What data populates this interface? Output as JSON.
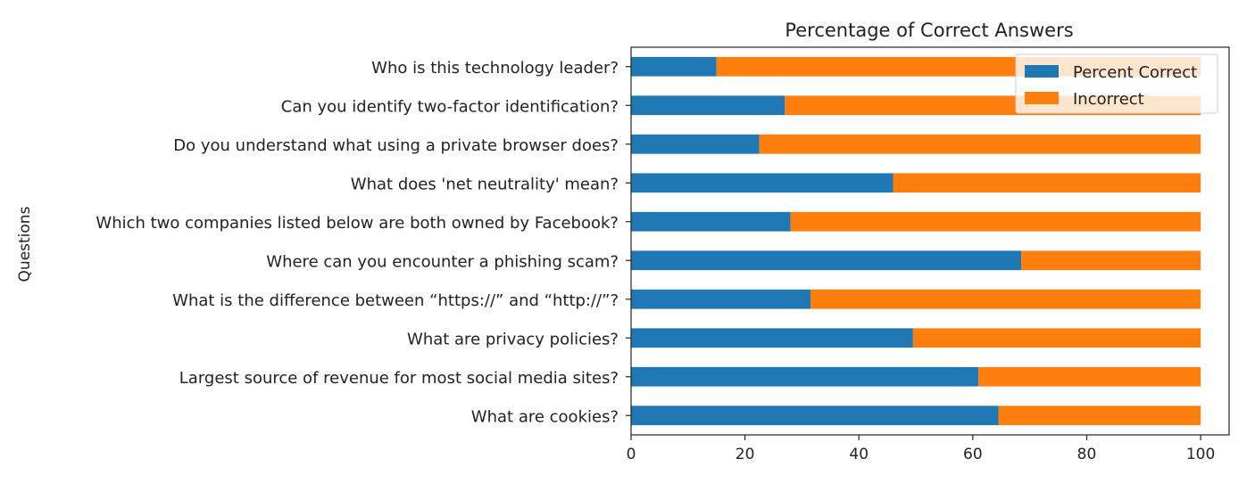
{
  "chart_data": {
    "type": "bar",
    "orientation": "horizontal",
    "stacked": true,
    "title": "Percentage of Correct Answers",
    "xlabel": "",
    "ylabel": "Questions",
    "xlim": [
      0,
      105
    ],
    "xticks": [
      0,
      20,
      40,
      60,
      80,
      100
    ],
    "grid": false,
    "legend_position": "top-right",
    "categories": [
      "Who is this technology leader?",
      "Can you identify two-factor identification?",
      "Do you understand what using a private browser does?",
      "What does 'net neutrality' mean?",
      "Which two companies listed below are both owned by Facebook?",
      "Where can you encounter a phishing scam?",
      "What is the difference between “https://” and “http://”?",
      "What are privacy policies?",
      "Largest source of revenue for most social media sites?",
      "What are cookies?"
    ],
    "series": [
      {
        "name": "Percent Correct",
        "color": "#1f77b4",
        "values": [
          15,
          27,
          22.5,
          46,
          28,
          68.5,
          31.5,
          49.5,
          61,
          64.5
        ]
      },
      {
        "name": "Incorrect",
        "color": "#ff7f0e",
        "values": [
          85,
          73,
          77.5,
          54,
          72,
          31.5,
          68.5,
          50.5,
          39,
          35.5
        ]
      }
    ]
  }
}
